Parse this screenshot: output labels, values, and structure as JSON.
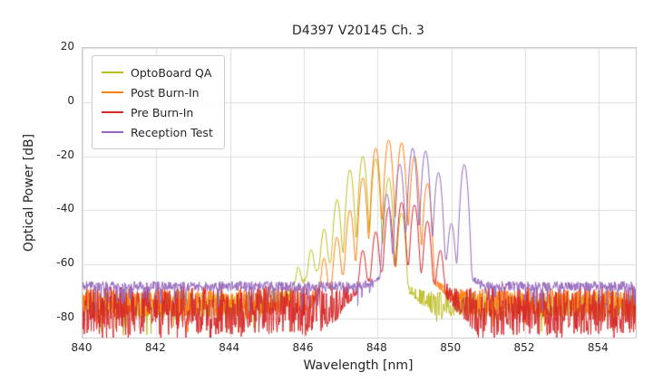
{
  "chart_data": {
    "type": "line",
    "title": "D4397 V20145 Ch. 3",
    "xlabel": "Wavelength [nm]",
    "ylabel": "Optical Power [dB]",
    "xlim": [
      840,
      855
    ],
    "ylim": [
      -87,
      20
    ],
    "xticks": [
      840,
      842,
      844,
      846,
      848,
      850,
      852,
      854
    ],
    "yticks": [
      20,
      0,
      -20,
      -40,
      -60,
      -80
    ],
    "grid": true,
    "legend_position": "upper left",
    "mode_width_nm": 0.065,
    "series": [
      {
        "name": "OptoBoard QA",
        "color": "#bcbd22",
        "noise_floor_db": -75,
        "noise_amp_db": 5,
        "seed": 11,
        "pedestal": {
          "center": 847.3,
          "width": 0.9,
          "height_db": -58
        },
        "modes": [
          [
            845.85,
            -62
          ],
          [
            846.2,
            -55
          ],
          [
            846.55,
            -47
          ],
          [
            846.9,
            -36
          ],
          [
            847.25,
            -25
          ],
          [
            847.6,
            -20
          ],
          [
            847.95,
            -21
          ],
          [
            848.3,
            -28
          ],
          [
            848.65,
            -41
          ]
        ]
      },
      {
        "name": "Post Burn-In",
        "color": "#ff7f0e",
        "noise_floor_db": -74,
        "noise_amp_db": 5,
        "seed": 22,
        "pedestal": {
          "center": 848.2,
          "width": 0.9,
          "height_db": -58
        },
        "modes": [
          [
            846.55,
            -58
          ],
          [
            846.9,
            -50
          ],
          [
            847.25,
            -40
          ],
          [
            847.6,
            -28
          ],
          [
            847.95,
            -17
          ],
          [
            848.3,
            -14
          ],
          [
            848.65,
            -15
          ],
          [
            849.0,
            -20
          ],
          [
            849.35,
            -30
          ]
        ]
      },
      {
        "name": "Pre Burn-In",
        "color": "#d62728",
        "noise_floor_db": -77,
        "noise_amp_db": 9,
        "seed": 33,
        "pedestal": {
          "center": 848.6,
          "width": 0.8,
          "height_db": -62
        },
        "modes": [
          [
            847.6,
            -55
          ],
          [
            847.95,
            -48
          ],
          [
            848.3,
            -39
          ],
          [
            848.65,
            -37
          ],
          [
            849.0,
            -38
          ],
          [
            849.35,
            -44
          ],
          [
            849.7,
            -55
          ]
        ]
      },
      {
        "name": "Reception Test",
        "color": "#9467bd",
        "noise_floor_db": -68,
        "noise_amp_db": 1.8,
        "seed": 44,
        "pedestal": {
          "center": 849.3,
          "width": 0.8,
          "height_db": -58
        },
        "modes": [
          [
            848.25,
            -34
          ],
          [
            848.6,
            -23
          ],
          [
            848.95,
            -17
          ],
          [
            849.3,
            -18
          ],
          [
            849.65,
            -26
          ],
          [
            850.0,
            -45
          ],
          [
            850.35,
            -23
          ]
        ]
      }
    ]
  }
}
